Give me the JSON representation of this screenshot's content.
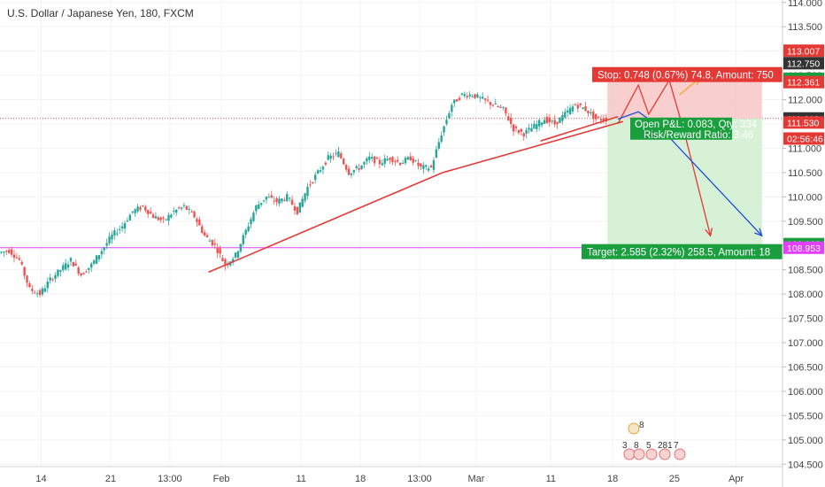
{
  "header": {
    "title": "U.S. Dollar / Japanese Yen, 180, FXCM"
  },
  "colors": {
    "up": "#26a69a",
    "down": "#ef5350",
    "trendline": "#e53935",
    "blue": "#1e4fd8",
    "magenta": "#e040fb",
    "stop_zone": "#f7c5c5",
    "target_zone": "#cfeecf",
    "orange": "#f5a623"
  },
  "chart_data": {
    "type": "candlestick",
    "title": "U.S. Dollar / Japanese Yen, 180, FXCM",
    "ylim": [
      104.45,
      114.05
    ],
    "y_ticks": [
      "114.000",
      "113.500",
      "113.000",
      "112.500",
      "112.000",
      "111.500",
      "111.000",
      "110.500",
      "110.000",
      "109.500",
      "109.000",
      "108.500",
      "108.000",
      "107.500",
      "107.000",
      "106.500",
      "106.000",
      "105.500",
      "105.000",
      "104.500"
    ],
    "x_ticks": [
      "14",
      "21",
      "13:00",
      "Feb",
      "11",
      "18",
      "13:00",
      "Mar",
      "11",
      "18",
      "25",
      "Apr"
    ],
    "series_path": [
      [
        0,
        108.85
      ],
      [
        2,
        108.9
      ],
      [
        4,
        108.7
      ],
      [
        6,
        108.1
      ],
      [
        8,
        108.0
      ],
      [
        10,
        108.3
      ],
      [
        12,
        108.5
      ],
      [
        14,
        108.7
      ],
      [
        16,
        108.4
      ],
      [
        18,
        108.6
      ],
      [
        20,
        108.9
      ],
      [
        22,
        109.2
      ],
      [
        24,
        109.4
      ],
      [
        26,
        109.7
      ],
      [
        28,
        109.8
      ],
      [
        30,
        109.6
      ],
      [
        32,
        109.5
      ],
      [
        34,
        109.7
      ],
      [
        36,
        109.8
      ],
      [
        38,
        109.6
      ],
      [
        40,
        109.2
      ],
      [
        42,
        109.0
      ],
      [
        44,
        108.6
      ],
      [
        46,
        108.8
      ],
      [
        48,
        109.3
      ],
      [
        50,
        109.8
      ],
      [
        52,
        110.0
      ],
      [
        54,
        109.9
      ],
      [
        56,
        110.0
      ],
      [
        58,
        109.7
      ],
      [
        60,
        110.2
      ],
      [
        62,
        110.5
      ],
      [
        64,
        110.8
      ],
      [
        66,
        110.9
      ],
      [
        68,
        110.5
      ],
      [
        70,
        110.6
      ],
      [
        72,
        110.8
      ],
      [
        74,
        110.7
      ],
      [
        76,
        110.8
      ],
      [
        78,
        110.7
      ],
      [
        80,
        110.8
      ],
      [
        82,
        110.6
      ],
      [
        84,
        110.6
      ],
      [
        86,
        111.3
      ],
      [
        88,
        111.9
      ],
      [
        90,
        112.1
      ],
      [
        92,
        112.1
      ],
      [
        94,
        112.0
      ],
      [
        96,
        111.9
      ],
      [
        98,
        111.8
      ],
      [
        100,
        111.4
      ],
      [
        102,
        111.3
      ],
      [
        104,
        111.45
      ],
      [
        106,
        111.6
      ],
      [
        108,
        111.5
      ],
      [
        110,
        111.7
      ],
      [
        112,
        111.9
      ],
      [
        114,
        111.8
      ],
      [
        116,
        111.6
      ],
      [
        118,
        111.6
      ]
    ],
    "trendlines": [
      {
        "from": [
          40.5,
          108.45
        ],
        "to": [
          86,
          110.5
        ]
      },
      {
        "from": [
          86,
          110.5
        ],
        "to": [
          121,
          111.55
        ]
      },
      {
        "from": [
          105,
          111.15
        ],
        "to": [
          120,
          111.65
        ]
      }
    ],
    "horizontal_levels": [
      {
        "value": 108.953,
        "label": "108.953",
        "color": "#e040fb"
      },
      {
        "value": 111.613,
        "label": "111.613",
        "color": "#d9534f"
      }
    ],
    "position": {
      "entry": 111.613,
      "stop": 112.361,
      "target": 109.028,
      "x_start": 118,
      "x_end": 148,
      "stop_text": "Stop: 0.748 (0.67%) 74.8, Amount: 750",
      "pnl_text": "Open P&L: 0.083, Qty: 334",
      "rr_text": "Risk/Reward Ratio: 3.46",
      "target_text": "Target: 2.585 (2.32%) 258.5, Amount: 18"
    },
    "projections": [
      {
        "path": [
          [
            120,
            111.5
          ],
          [
            124,
            112.3
          ],
          [
            126,
            111.7
          ],
          [
            130,
            112.4
          ],
          [
            133,
            111.3
          ],
          [
            138,
            109.2
          ]
        ],
        "color": "#e53935"
      },
      {
        "path": [
          [
            120,
            111.6
          ],
          [
            124,
            111.75
          ],
          [
            128,
            111.45
          ],
          [
            148,
            109.2
          ]
        ],
        "color": "#1e4fd8"
      },
      {
        "path": [
          [
            132,
            112.1
          ],
          [
            136,
            112.45
          ]
        ],
        "color": "#f5a623"
      }
    ],
    "price_badges": [
      {
        "value": 113.007,
        "label": "113.007",
        "bg": "#e53935"
      },
      {
        "value": 112.75,
        "label": "112.750",
        "bg": "#333333"
      },
      {
        "value": 112.43,
        "label": "112.430",
        "bg": "#1b9e3e"
      },
      {
        "value": 112.361,
        "label": "112.361",
        "bg": "#e53935"
      },
      {
        "value": 111.613,
        "label": "111.613",
        "bg": "#333333"
      },
      {
        "value": 111.53,
        "label": "111.530",
        "bg": "#e53935"
      },
      {
        "value": 111.2,
        "label": "02:56:46",
        "bg": "#e53935"
      },
      {
        "value": 109.028,
        "label": "109.028",
        "bg": "#1b9e3e"
      },
      {
        "value": 108.953,
        "label": "108.953",
        "bg": "#e040fb"
      }
    ],
    "event_markers": {
      "top_count": "8",
      "row": [
        "3",
        "8",
        "5",
        "281",
        "7"
      ]
    }
  }
}
